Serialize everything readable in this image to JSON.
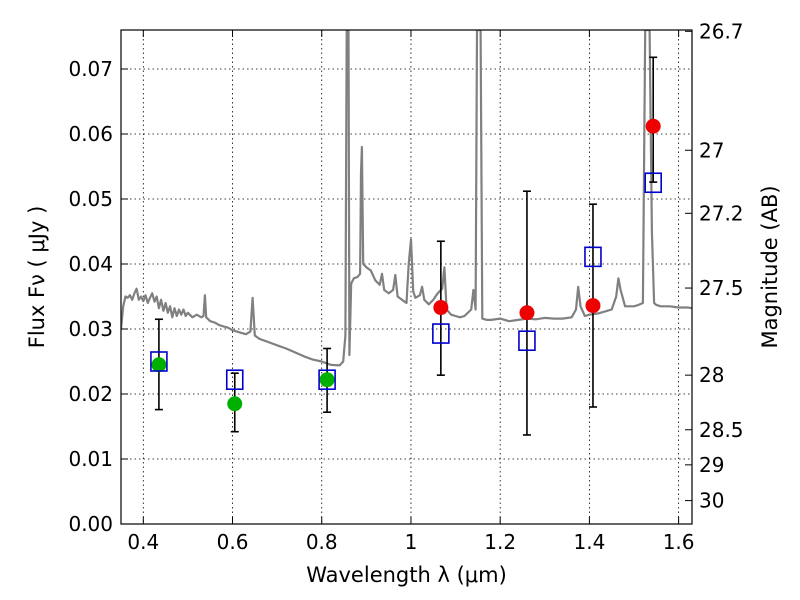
{
  "chart_data": {
    "type": "scatter",
    "xlabel": "Wavelength  λ (μm)",
    "ylabel": "Flux  Fν  ( μJy )",
    "y2label": "Magnitude (AB)",
    "xlim": [
      0.35,
      1.63
    ],
    "ylim": [
      0.0,
      0.076
    ],
    "grid": true,
    "grid_style": "dotted",
    "x_ticks": [
      0.4,
      0.6,
      0.8,
      1.0,
      1.2,
      1.4,
      1.6
    ],
    "x_tick_labels": [
      "0.4",
      "0.6",
      "0.8",
      "1",
      "1.2",
      "1.4",
      "1.6"
    ],
    "y_ticks": [
      0.0,
      0.01,
      0.02,
      0.03,
      0.04,
      0.05,
      0.06,
      0.07
    ],
    "y_tick_labels": [
      "0.00",
      "0.01",
      "0.02",
      "0.03",
      "0.04",
      "0.05",
      "0.06",
      "0.07"
    ],
    "y2_ticks": [
      {
        "label": "26.7",
        "flux": 0.0758
      },
      {
        "label": "27",
        "flux": 0.0575
      },
      {
        "label": "27.2",
        "flux": 0.0478
      },
      {
        "label": "27.5",
        "flux": 0.0363
      },
      {
        "label": "28",
        "flux": 0.0229
      },
      {
        "label": "28.5",
        "flux": 0.0145
      },
      {
        "label": "29",
        "flux": 0.0091
      },
      {
        "label": "30",
        "flux": 0.0036
      }
    ],
    "model_spectrum": {
      "color": "#808080",
      "points": [
        [
          0.35,
          0.03
        ],
        [
          0.355,
          0.0335
        ],
        [
          0.36,
          0.035
        ],
        [
          0.365,
          0.0348
        ],
        [
          0.37,
          0.0352
        ],
        [
          0.375,
          0.0345
        ],
        [
          0.38,
          0.0355
        ],
        [
          0.385,
          0.0362
        ],
        [
          0.39,
          0.0345
        ],
        [
          0.395,
          0.035
        ],
        [
          0.4,
          0.0343
        ],
        [
          0.405,
          0.0352
        ],
        [
          0.41,
          0.034
        ],
        [
          0.415,
          0.0348
        ],
        [
          0.42,
          0.0355
        ],
        [
          0.425,
          0.0342
        ],
        [
          0.43,
          0.035
        ],
        [
          0.435,
          0.0332
        ],
        [
          0.44,
          0.0345
        ],
        [
          0.445,
          0.0328
        ],
        [
          0.45,
          0.034
        ],
        [
          0.455,
          0.0325
        ],
        [
          0.46,
          0.0335
        ],
        [
          0.465,
          0.0318
        ],
        [
          0.47,
          0.0332
        ],
        [
          0.475,
          0.032
        ],
        [
          0.48,
          0.033
        ],
        [
          0.485,
          0.0322
        ],
        [
          0.49,
          0.033
        ],
        [
          0.495,
          0.032
        ],
        [
          0.5,
          0.0325
        ],
        [
          0.51,
          0.0318
        ],
        [
          0.52,
          0.0322
        ],
        [
          0.53,
          0.0318
        ],
        [
          0.535,
          0.032
        ],
        [
          0.538,
          0.0352
        ],
        [
          0.541,
          0.0318
        ],
        [
          0.55,
          0.0312
        ],
        [
          0.56,
          0.031
        ],
        [
          0.57,
          0.0306
        ],
        [
          0.58,
          0.0304
        ],
        [
          0.59,
          0.0302
        ],
        [
          0.6,
          0.0298
        ],
        [
          0.61,
          0.0296
        ],
        [
          0.62,
          0.0294
        ],
        [
          0.63,
          0.0292
        ],
        [
          0.64,
          0.0296
        ],
        [
          0.645,
          0.0348
        ],
        [
          0.65,
          0.029
        ],
        [
          0.66,
          0.0285
        ],
        [
          0.68,
          0.028
        ],
        [
          0.7,
          0.0275
        ],
        [
          0.72,
          0.027
        ],
        [
          0.74,
          0.0264
        ],
        [
          0.76,
          0.0258
        ],
        [
          0.78,
          0.0253
        ],
        [
          0.8,
          0.025
        ],
        [
          0.82,
          0.0245
        ],
        [
          0.84,
          0.0244
        ],
        [
          0.848,
          0.025
        ],
        [
          0.853,
          0.029
        ],
        [
          0.856,
          0.076
        ],
        [
          0.86,
          0.076
        ],
        [
          0.862,
          0.026
        ],
        [
          0.866,
          0.037
        ],
        [
          0.872,
          0.0378
        ],
        [
          0.88,
          0.038
        ],
        [
          0.886,
          0.0385
        ],
        [
          0.888,
          0.054
        ],
        [
          0.89,
          0.058
        ],
        [
          0.893,
          0.04
        ],
        [
          0.9,
          0.0395
        ],
        [
          0.91,
          0.039
        ],
        [
          0.92,
          0.0375
        ],
        [
          0.93,
          0.0368
        ],
        [
          0.935,
          0.0385
        ],
        [
          0.94,
          0.036
        ],
        [
          0.95,
          0.0355
        ],
        [
          0.96,
          0.036
        ],
        [
          0.965,
          0.0383
        ],
        [
          0.97,
          0.035
        ],
        [
          0.98,
          0.0345
        ],
        [
          0.99,
          0.034
        ],
        [
          0.995,
          0.04
        ],
        [
          1.0,
          0.0438
        ],
        [
          1.005,
          0.0358
        ],
        [
          1.01,
          0.0348
        ],
        [
          1.02,
          0.0352
        ],
        [
          1.025,
          0.0365
        ],
        [
          1.03,
          0.0345
        ],
        [
          1.04,
          0.0338
        ],
        [
          1.05,
          0.0345
        ],
        [
          1.06,
          0.0355
        ],
        [
          1.07,
          0.0362
        ],
        [
          1.075,
          0.0395
        ],
        [
          1.08,
          0.033
        ],
        [
          1.09,
          0.0322
        ],
        [
          1.1,
          0.032
        ],
        [
          1.11,
          0.0318
        ],
        [
          1.12,
          0.032
        ],
        [
          1.135,
          0.033
        ],
        [
          1.14,
          0.036
        ],
        [
          1.145,
          0.033
        ],
        [
          1.148,
          0.076
        ],
        [
          1.156,
          0.076
        ],
        [
          1.16,
          0.0316
        ],
        [
          1.17,
          0.0314
        ],
        [
          1.18,
          0.0314
        ],
        [
          1.2,
          0.0316
        ],
        [
          1.22,
          0.0312
        ],
        [
          1.24,
          0.0314
        ],
        [
          1.26,
          0.0316
        ],
        [
          1.28,
          0.0315
        ],
        [
          1.3,
          0.0317
        ],
        [
          1.32,
          0.0316
        ],
        [
          1.34,
          0.0316
        ],
        [
          1.36,
          0.0318
        ],
        [
          1.37,
          0.033
        ],
        [
          1.375,
          0.0365
        ],
        [
          1.38,
          0.0335
        ],
        [
          1.39,
          0.032
        ],
        [
          1.4,
          0.0322
        ],
        [
          1.42,
          0.0324
        ],
        [
          1.44,
          0.0328
        ],
        [
          1.45,
          0.033
        ],
        [
          1.46,
          0.035
        ],
        [
          1.465,
          0.0378
        ],
        [
          1.47,
          0.036
        ],
        [
          1.48,
          0.0335
        ],
        [
          1.5,
          0.0335
        ],
        [
          1.51,
          0.0337
        ],
        [
          1.52,
          0.034
        ],
        [
          1.525,
          0.076
        ],
        [
          1.535,
          0.076
        ],
        [
          1.54,
          0.045
        ],
        [
          1.545,
          0.034
        ],
        [
          1.55,
          0.0337
        ],
        [
          1.56,
          0.0335
        ],
        [
          1.58,
          0.0335
        ],
        [
          1.6,
          0.0333
        ],
        [
          1.62,
          0.0333
        ],
        [
          1.63,
          0.0332
        ]
      ]
    },
    "series": [
      {
        "color": "#00b000",
        "marker": "circle",
        "points": [
          {
            "x": 0.435,
            "y": 0.0245,
            "err_low": 0.0176,
            "err_high": 0.0315
          },
          {
            "x": 0.605,
            "y": 0.0185,
            "err_low": 0.0142,
            "err_high": 0.0232
          },
          {
            "x": 0.812,
            "y": 0.0222,
            "err_low": 0.0172,
            "err_high": 0.027
          }
        ]
      },
      {
        "color": "#ee0000",
        "marker": "circle",
        "points": [
          {
            "x": 1.067,
            "y": 0.0333,
            "err_low": 0.0229,
            "err_high": 0.0435
          },
          {
            "x": 1.26,
            "y": 0.0325,
            "err_low": 0.0137,
            "err_high": 0.0512
          },
          {
            "x": 1.408,
            "y": 0.0336,
            "err_low": 0.018,
            "err_high": 0.0492
          },
          {
            "x": 1.543,
            "y": 0.0612,
            "err_low": 0.0526,
            "err_high": 0.0718
          }
        ]
      },
      {
        "color": "#0000cc",
        "marker": "open-square",
        "points": [
          {
            "x": 0.435,
            "y": 0.025
          },
          {
            "x": 0.605,
            "y": 0.0222
          },
          {
            "x": 0.812,
            "y": 0.0222
          },
          {
            "x": 1.067,
            "y": 0.0293
          },
          {
            "x": 1.26,
            "y": 0.0282
          },
          {
            "x": 1.408,
            "y": 0.0411
          },
          {
            "x": 1.543,
            "y": 0.0525
          }
        ]
      }
    ]
  }
}
